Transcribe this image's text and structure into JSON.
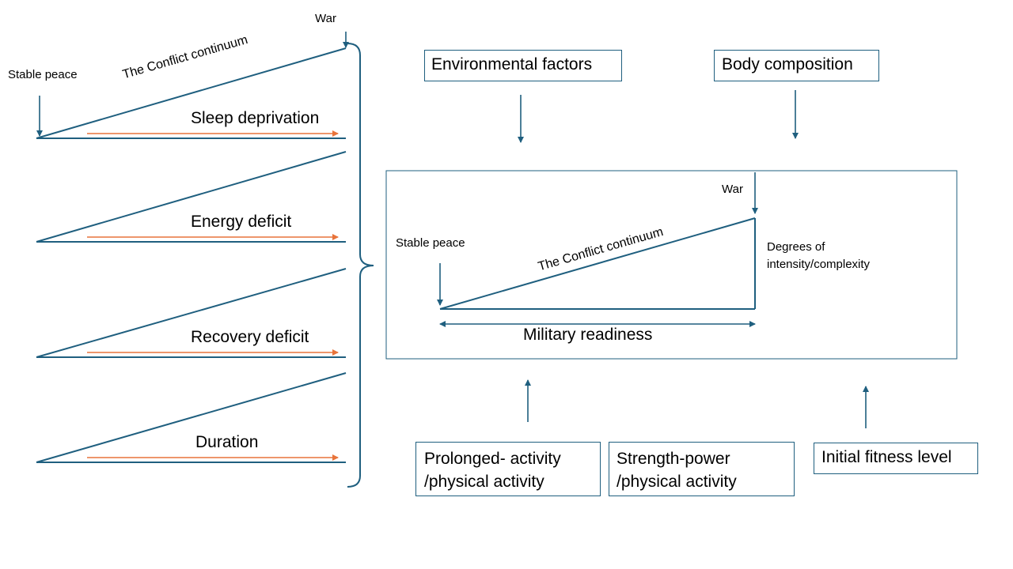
{
  "left_panel": {
    "top_stable_peace": "Stable peace",
    "top_war": "War",
    "top_continuum": "The Conflict continuum",
    "factors": [
      {
        "label": "Sleep deprivation"
      },
      {
        "label": "Energy deficit"
      },
      {
        "label": "Recovery deficit"
      },
      {
        "label": "Duration"
      }
    ]
  },
  "factor_boxes": {
    "environmental": "Environmental factors",
    "body_composition": "Body composition",
    "prolonged_line1": "Prolonged- activity",
    "prolonged_line2": "/physical activity",
    "strength_line1": "Strength-power",
    "strength_line2": "/physical activity",
    "initial_fitness": "Initial fitness level"
  },
  "center_diagram": {
    "war": "War",
    "stable_peace": "Stable peace",
    "continuum": "The Conflict continuum",
    "degrees_line1": "Degrees of",
    "degrees_line2": "intensity/complexity",
    "military_readiness": "Military readiness"
  },
  "colors": {
    "line": "#1f5f7f",
    "arrow_orange": "#e8743b"
  }
}
